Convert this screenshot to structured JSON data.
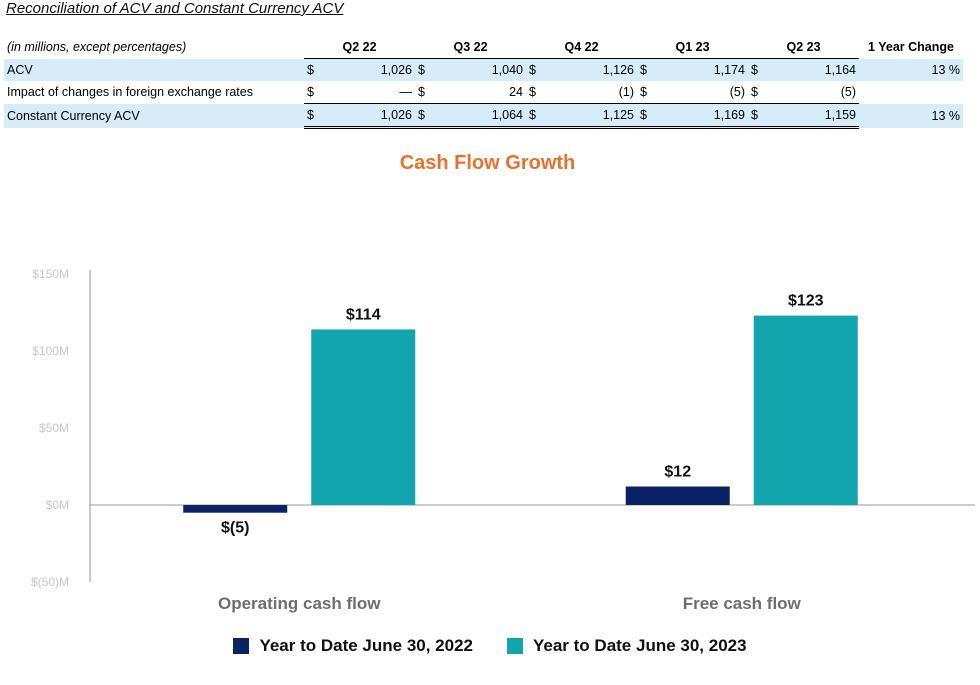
{
  "table": {
    "title": "Reconciliation of ACV and Constant Currency ACV",
    "units_label": "(in millions, except percentages)",
    "periods": [
      "Q2 22",
      "Q3 22",
      "Q4 22",
      "Q1 23",
      "Q2 23"
    ],
    "change_header": "1 Year Change",
    "currency": "$",
    "rows": [
      {
        "label": "ACV",
        "values": [
          "1,026",
          "1,040",
          "1,126",
          "1,174",
          "1,164"
        ],
        "change": "13 %"
      },
      {
        "label": "Impact of changes in foreign exchange rates",
        "values": [
          "—",
          "24",
          "(1)",
          "(5)",
          "(5)"
        ],
        "change": ""
      },
      {
        "label": "Constant Currency ACV",
        "values": [
          "1,026",
          "1,064",
          "1,125",
          "1,169",
          "1,159"
        ],
        "change": "13 %"
      }
    ]
  },
  "chart_data": {
    "type": "bar",
    "title": "Cash Flow Growth",
    "categories": [
      "Operating cash flow",
      "Free cash flow"
    ],
    "series": [
      {
        "name": "Year to Date June 30, 2022",
        "values": [
          -5,
          12
        ],
        "labels": [
          "$(5)",
          "$12"
        ],
        "color": "#0b2265"
      },
      {
        "name": "Year to Date June 30, 2023",
        "values": [
          114,
          123
        ],
        "labels": [
          "$114",
          "$123"
        ],
        "color": "#12a5ad"
      }
    ],
    "y_ticks": [
      150,
      100,
      50,
      0,
      -50
    ],
    "y_tick_labels": [
      "$150M",
      "$100M",
      "$50M",
      "$0M",
      "$(50)M"
    ],
    "ylim": [
      -50,
      150
    ],
    "grid": false,
    "legend_position": "bottom"
  }
}
